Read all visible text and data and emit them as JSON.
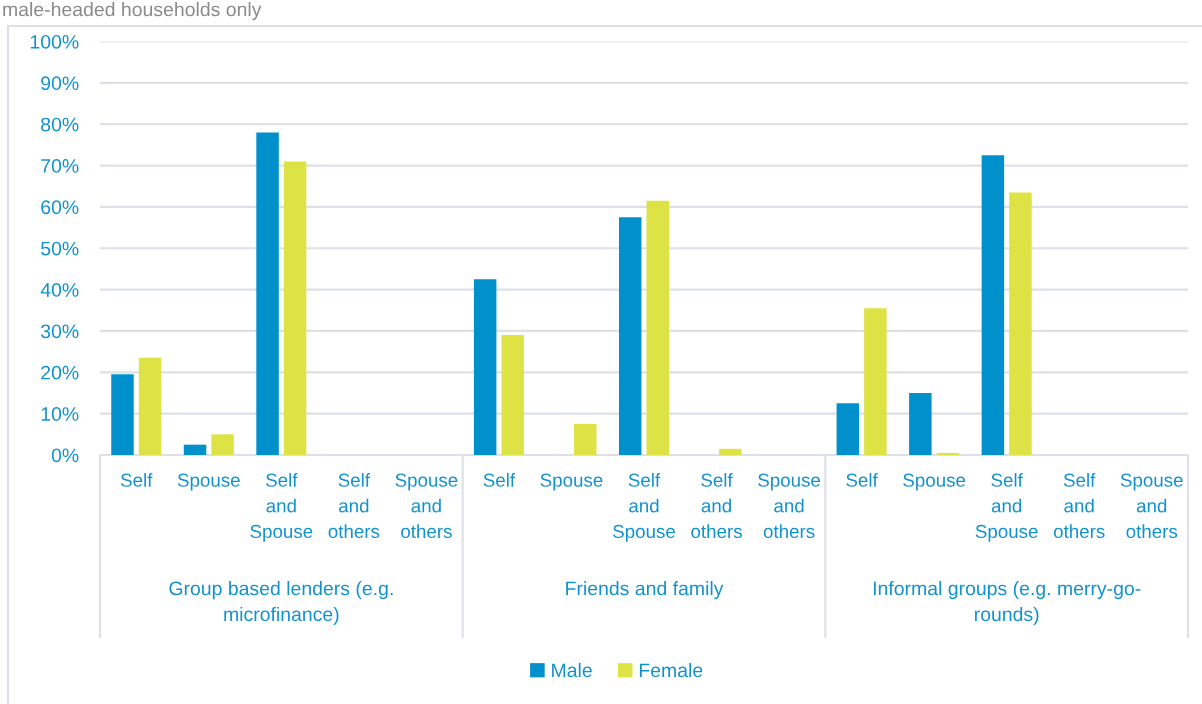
{
  "chart_data": {
    "type": "bar",
    "title": "male-headed households only",
    "categories": [
      "Self",
      "Spouse",
      "Self and Spouse",
      "Self and others",
      "Spouse and others",
      "Self",
      "Spouse",
      "Self and Spouse",
      "Self and others",
      "Spouse and others",
      "Self",
      "Spouse",
      "Self and Spouse",
      "Self and others",
      "Spouse and others"
    ],
    "series": [
      {
        "name": "Male",
        "color": "#0091cc",
        "values": [
          19.5,
          2.5,
          78,
          0,
          0,
          42.5,
          0,
          57.5,
          0,
          0,
          12.5,
          15,
          72.5,
          0,
          0
        ]
      },
      {
        "name": "Female",
        "color": "#dee345",
        "values": [
          23.5,
          5,
          71,
          0,
          0,
          29,
          7.5,
          61.5,
          1.5,
          0,
          35.5,
          0.5,
          63.5,
          0,
          0
        ]
      }
    ],
    "ylim": [
      0,
      100
    ],
    "yticks": [
      {
        "value": 0,
        "label": "0%"
      },
      {
        "value": 10,
        "label": "10%"
      },
      {
        "value": 20,
        "label": "20%"
      },
      {
        "value": 30,
        "label": "30%"
      },
      {
        "value": 40,
        "label": "40%"
      },
      {
        "value": 50,
        "label": "50%"
      },
      {
        "value": 60,
        "label": "60%"
      },
      {
        "value": 70,
        "label": "70%"
      },
      {
        "value": 80,
        "label": "80%"
      },
      {
        "value": 90,
        "label": "90%"
      },
      {
        "value": 100,
        "label": "100%"
      }
    ],
    "grid": "y",
    "legend": "bottom",
    "annotations": [
      "Group based lenders (e.g. microfinance)",
      "Friends and family",
      "Informal groups (e.g. merry-go-rounds)"
    ]
  }
}
